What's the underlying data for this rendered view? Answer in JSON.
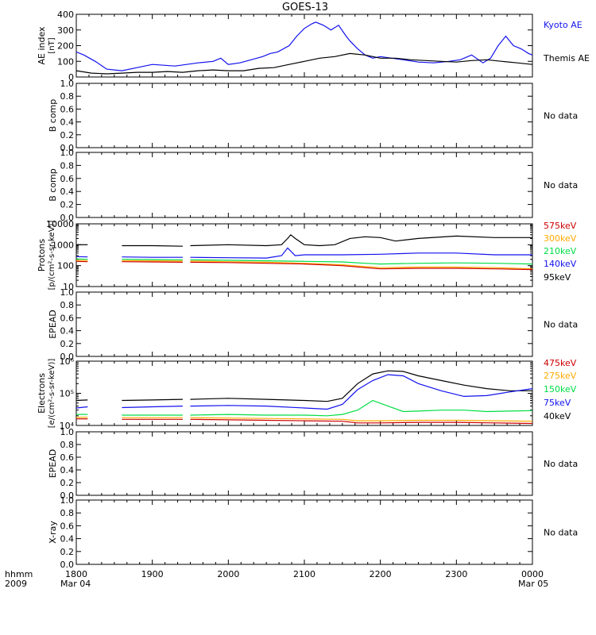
{
  "title": "GOES-13",
  "time_axis": {
    "row1_left": "hhmm",
    "row2_left": "2009",
    "tick_labels": [
      "1800",
      "1900",
      "2000",
      "2100",
      "2200",
      "2300",
      "0000"
    ],
    "start_date": "Mar 04",
    "end_date": "Mar 05",
    "range_hours": [
      0,
      6
    ]
  },
  "colors": {
    "black": "#000000",
    "blue": "#1111ee",
    "green": "#00dd44",
    "orange": "#ffaa00",
    "red": "#cc0000"
  },
  "chart_data": [
    {
      "type": "line",
      "panel": "ae",
      "ylabel": [
        "AE index",
        "[nT]"
      ],
      "ylim": [
        0,
        400
      ],
      "ticks": [
        "0",
        "100",
        "200",
        "300",
        "400"
      ],
      "tick_values": [
        0,
        100,
        200,
        300,
        400
      ],
      "series": [
        {
          "name": "Kyoto AE",
          "color": "blue",
          "x": [
            0,
            0.1,
            0.25,
            0.4,
            0.6,
            0.8,
            1.0,
            1.3,
            1.6,
            1.8,
            1.9,
            2.0,
            2.15,
            2.3,
            2.45,
            2.55,
            2.65,
            2.8,
            2.9,
            3.0,
            3.1,
            3.15,
            3.25,
            3.35,
            3.45,
            3.55,
            3.6,
            3.7,
            3.8,
            3.9,
            4.0,
            4.15,
            4.3,
            4.5,
            4.7,
            4.9,
            5.05,
            5.2,
            5.35,
            5.45,
            5.55,
            5.65,
            5.75,
            5.85,
            5.95,
            6.0
          ],
          "y": [
            160,
            140,
            100,
            50,
            40,
            60,
            80,
            70,
            90,
            100,
            120,
            80,
            90,
            110,
            130,
            150,
            160,
            200,
            260,
            310,
            340,
            350,
            330,
            300,
            330,
            260,
            230,
            180,
            140,
            120,
            130,
            120,
            110,
            95,
            90,
            100,
            110,
            140,
            90,
            120,
            200,
            260,
            200,
            180,
            150,
            140
          ]
        },
        {
          "name": "Themis AE",
          "color": "black",
          "x": [
            0,
            0.2,
            0.4,
            0.6,
            0.8,
            1.0,
            1.2,
            1.4,
            1.6,
            1.8,
            2.0,
            2.2,
            2.4,
            2.6,
            2.8,
            3.0,
            3.2,
            3.4,
            3.6,
            3.8,
            4.0,
            4.2,
            4.4,
            4.6,
            4.8,
            5.0,
            5.2,
            5.4,
            5.6,
            5.8,
            6.0
          ],
          "y": [
            40,
            25,
            20,
            25,
            30,
            30,
            35,
            30,
            40,
            45,
            40,
            40,
            55,
            60,
            80,
            100,
            120,
            130,
            150,
            140,
            120,
            120,
            110,
            105,
            100,
            95,
            105,
            110,
            100,
            90,
            80
          ]
        }
      ]
    },
    {
      "type": "line",
      "panel": "bcomp1",
      "ylabel": [
        "B comp"
      ],
      "ylim": [
        0,
        1
      ],
      "ticks": [
        "0.0",
        "0.2",
        "0.4",
        "0.6",
        "0.8",
        "1.0"
      ],
      "tick_values": [
        0,
        0.2,
        0.4,
        0.6,
        0.8,
        1.0
      ],
      "note": "No data",
      "series": []
    },
    {
      "type": "line",
      "panel": "bcomp2",
      "ylabel": [
        "B comp"
      ],
      "ylim": [
        0,
        1
      ],
      "ticks": [
        "0.0",
        "0.2",
        "0.4",
        "0.6",
        "0.8",
        "1.0"
      ],
      "tick_values": [
        0,
        0.2,
        0.4,
        0.6,
        0.8,
        1.0
      ],
      "note": "No data",
      "series": []
    },
    {
      "type": "line",
      "panel": "protons",
      "ylabel": [
        "Protons",
        "[p/(cm²-s-sr-keV)]"
      ],
      "ylim": [
        10,
        10000
      ],
      "log_scale": true,
      "ticks": [
        "10",
        "100",
        "1000",
        "10000"
      ],
      "tick_values": [
        10,
        100,
        1000,
        10000
      ],
      "data_gaps_hours": [
        [
          0.22,
          0.52
        ],
        [
          1.42,
          1.47
        ]
      ],
      "series": [
        {
          "name": "95keV",
          "color": "black",
          "x": [
            0,
            0.15,
            0.6,
            1.0,
            1.4,
            1.5,
            2.0,
            2.5,
            2.7,
            2.78,
            2.82,
            2.88,
            3.0,
            3.2,
            3.4,
            3.6,
            3.8,
            4.0,
            4.2,
            4.5,
            5.0,
            5.5,
            6.0
          ],
          "y": [
            1000,
            1000,
            900,
            900,
            850,
            900,
            1000,
            900,
            1000,
            2000,
            3000,
            2000,
            1000,
            900,
            1000,
            2000,
            2400,
            2200,
            1500,
            2000,
            2600,
            2200,
            2200
          ]
        },
        {
          "name": "140keV",
          "color": "blue",
          "x": [
            0,
            0.15,
            0.6,
            1.0,
            1.4,
            1.5,
            2.0,
            2.5,
            2.7,
            2.78,
            2.82,
            2.88,
            3.0,
            3.5,
            4.0,
            4.5,
            5.0,
            5.5,
            6.0
          ],
          "y": [
            270,
            260,
            260,
            250,
            250,
            250,
            240,
            230,
            300,
            700,
            500,
            300,
            330,
            330,
            350,
            400,
            400,
            330,
            330
          ]
        },
        {
          "name": "210keV",
          "color": "green",
          "x": [
            0,
            0.15,
            0.6,
            1.0,
            1.4,
            1.5,
            2.0,
            2.5,
            3.0,
            3.5,
            3.8,
            4.0,
            4.5,
            5.0,
            5.5,
            6.0
          ],
          "y": [
            210,
            200,
            200,
            195,
            190,
            190,
            180,
            170,
            160,
            150,
            130,
            120,
            130,
            135,
            130,
            120
          ]
        },
        {
          "name": "300keV",
          "color": "orange",
          "x": [
            0,
            0.15,
            0.6,
            1.0,
            1.4,
            1.5,
            2.0,
            2.5,
            3.0,
            3.5,
            3.8,
            4.0,
            4.5,
            5.0,
            5.5,
            6.0
          ],
          "y": [
            180,
            175,
            175,
            170,
            165,
            165,
            155,
            145,
            130,
            110,
            90,
            80,
            85,
            85,
            80,
            70
          ]
        },
        {
          "name": "575keV",
          "color": "red",
          "x": [
            0,
            0.15,
            0.6,
            1.0,
            1.4,
            1.5,
            2.0,
            2.5,
            3.0,
            3.5,
            3.8,
            4.0,
            4.5,
            5.0,
            5.5,
            6.0
          ],
          "y": [
            160,
            155,
            155,
            150,
            145,
            145,
            140,
            130,
            120,
            100,
            80,
            70,
            75,
            75,
            70,
            65
          ]
        }
      ],
      "legend_order": [
        "575keV",
        "300keV",
        "210keV",
        "140keV",
        "95keV"
      ]
    },
    {
      "type": "line",
      "panel": "epead1",
      "ylabel": [
        "EPEAD"
      ],
      "ylim": [
        0,
        1
      ],
      "ticks": [
        "0.0",
        "0.2",
        "0.4",
        "0.6",
        "0.8",
        "1.0"
      ],
      "tick_values": [
        0,
        0.2,
        0.4,
        0.6,
        0.8,
        1.0
      ],
      "note": "No data",
      "series": []
    },
    {
      "type": "line",
      "panel": "electrons",
      "ylabel": [
        "Electrons",
        "[e/(cm²-s-sr-keV)]"
      ],
      "ylim": [
        10000,
        1000000
      ],
      "log_scale": true,
      "ticks": [
        "10⁴",
        "10⁵",
        "10⁶"
      ],
      "tick_values": [
        10000,
        100000,
        1000000
      ],
      "data_gaps_hours": [
        [
          0.22,
          0.52
        ],
        [
          1.42,
          1.47
        ]
      ],
      "series": [
        {
          "name": "40keV",
          "color": "black",
          "x": [
            0,
            0.15,
            0.6,
            1.0,
            1.4,
            1.5,
            2.0,
            2.5,
            3.0,
            3.3,
            3.5,
            3.7,
            3.9,
            4.1,
            4.3,
            4.5,
            4.8,
            5.1,
            5.4,
            5.7,
            6.0
          ],
          "y": [
            60000,
            62000,
            60000,
            62000,
            65000,
            65000,
            70000,
            65000,
            60000,
            56000,
            70000,
            200000,
            400000,
            500000,
            480000,
            350000,
            250000,
            180000,
            140000,
            120000,
            120000
          ]
        },
        {
          "name": "75keV",
          "color": "blue",
          "x": [
            0,
            0.15,
            0.6,
            1.0,
            1.4,
            1.5,
            2.0,
            2.5,
            3.0,
            3.3,
            3.5,
            3.7,
            3.9,
            4.1,
            4.3,
            4.5,
            4.8,
            5.1,
            5.4,
            5.7,
            6.0
          ],
          "y": [
            35000,
            38000,
            36000,
            38000,
            40000,
            40000,
            42000,
            40000,
            35000,
            32000,
            45000,
            130000,
            250000,
            380000,
            350000,
            200000,
            120000,
            80000,
            85000,
            110000,
            140000
          ]
        },
        {
          "name": "150keV",
          "color": "green",
          "x": [
            0,
            0.15,
            0.6,
            1.0,
            1.4,
            1.5,
            2.0,
            2.5,
            3.0,
            3.3,
            3.5,
            3.7,
            3.9,
            4.1,
            4.3,
            4.5,
            4.8,
            5.1,
            5.4,
            5.7,
            6.0
          ],
          "y": [
            22000,
            22000,
            21000,
            21000,
            21000,
            21000,
            22000,
            21000,
            21000,
            20000,
            22000,
            30000,
            60000,
            40000,
            27000,
            28000,
            30000,
            30000,
            27000,
            28000,
            29000
          ]
        },
        {
          "name": "275keV",
          "color": "orange",
          "x": [
            0,
            0.15,
            0.6,
            1.0,
            1.4,
            1.5,
            2.0,
            2.5,
            3.0,
            3.5,
            3.7,
            4.0,
            4.5,
            5.0,
            5.5,
            6.0
          ],
          "y": [
            18000,
            18000,
            17500,
            17500,
            17500,
            17500,
            17000,
            16500,
            16000,
            15500,
            14000,
            14000,
            14500,
            14500,
            14000,
            13500
          ]
        },
        {
          "name": "475keV",
          "color": "red",
          "x": [
            0,
            0.15,
            0.6,
            1.0,
            1.4,
            1.5,
            2.0,
            2.5,
            3.0,
            3.5,
            3.7,
            4.0,
            4.5,
            5.0,
            5.5,
            6.0
          ],
          "y": [
            16000,
            16000,
            15500,
            15500,
            15500,
            15500,
            15000,
            14500,
            14000,
            13500,
            12000,
            12000,
            12500,
            12500,
            12000,
            11500
          ]
        }
      ],
      "legend_order": [
        "475keV",
        "275keV",
        "150keV",
        "75keV",
        "40keV"
      ]
    },
    {
      "type": "line",
      "panel": "epead2",
      "ylabel": [
        "EPEAD"
      ],
      "ylim": [
        0,
        1
      ],
      "ticks": [
        "0.0",
        "0.2",
        "0.4",
        "0.6",
        "0.8",
        "1.0"
      ],
      "tick_values": [
        0,
        0.2,
        0.4,
        0.6,
        0.8,
        1.0
      ],
      "note": "No data",
      "series": []
    },
    {
      "type": "line",
      "panel": "xray",
      "ylabel": [
        "X-ray"
      ],
      "ylim": [
        0,
        1
      ],
      "ticks": [
        "0.0",
        "0.2",
        "0.4",
        "0.6",
        "0.8",
        "1.0"
      ],
      "tick_values": [
        0,
        0.2,
        0.4,
        0.6,
        0.8,
        1.0
      ],
      "note": "No data",
      "series": []
    }
  ]
}
